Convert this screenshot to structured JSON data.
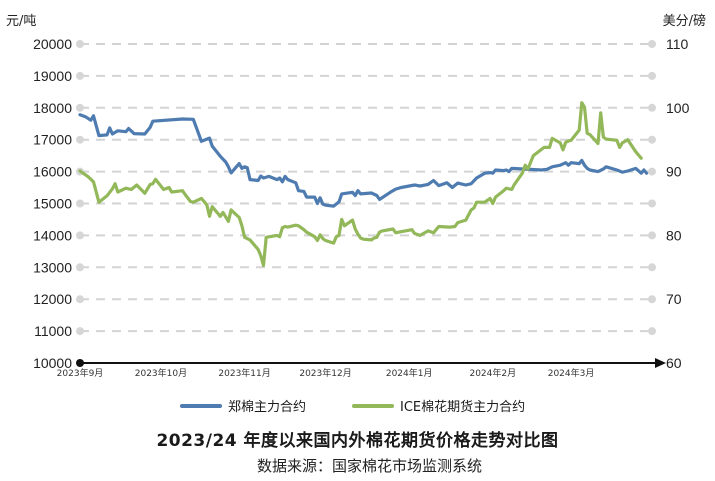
{
  "chart_data": {
    "type": "line",
    "title": "2023/24 年度以来国内外棉花期货价格走势对比图",
    "source": "数据来源：国家棉花市场监测系统",
    "left_unit": "元/吨",
    "right_unit": "美分/磅",
    "left_axis": {
      "min": 10000,
      "max": 20000,
      "ticks": [
        "10000",
        "11000",
        "12000",
        "13000",
        "14000",
        "15000",
        "16000",
        "17000",
        "18000",
        "19000",
        "20000"
      ]
    },
    "right_axis": {
      "min": 60,
      "max": 110,
      "ticks": [
        "60",
        "70",
        "80",
        "90",
        "100",
        "110"
      ]
    },
    "x_range": [
      "2023-09-01",
      "2024-03-31"
    ],
    "x_ticks": [
      {
        "date": "2023-09-01",
        "label": "2023年9月"
      },
      {
        "date": "2023-10-01",
        "label": "2023年10月"
      },
      {
        "date": "2023-11-01",
        "label": "2023年11月"
      },
      {
        "date": "2023-12-01",
        "label": "2023年12月"
      },
      {
        "date": "2024-01-01",
        "label": "2024年1月"
      },
      {
        "date": "2024-02-01",
        "label": "2024年2月"
      },
      {
        "date": "2024-03-01",
        "label": "2024年3月"
      }
    ],
    "grid": true,
    "legend_position": "bottom",
    "series": [
      {
        "name": "郑棉主力合约",
        "axis": "left",
        "color": "#4f7cb0",
        "points": [
          [
            "2023-09-01",
            17780
          ],
          [
            "2023-09-03",
            17720
          ],
          [
            "2023-09-05",
            17610
          ],
          [
            "2023-09-06",
            17750
          ],
          [
            "2023-09-08",
            17130
          ],
          [
            "2023-09-11",
            17150
          ],
          [
            "2023-09-12",
            17370
          ],
          [
            "2023-09-13",
            17180
          ],
          [
            "2023-09-15",
            17280
          ],
          [
            "2023-09-18",
            17250
          ],
          [
            "2023-09-19",
            17350
          ],
          [
            "2023-09-21",
            17190
          ],
          [
            "2023-09-25",
            17180
          ],
          [
            "2023-09-27",
            17390
          ],
          [
            "2023-09-28",
            17580
          ],
          [
            "2023-10-09",
            17650
          ],
          [
            "2023-10-13",
            17640
          ],
          [
            "2023-10-16",
            16950
          ],
          [
            "2023-10-19",
            17050
          ],
          [
            "2023-10-20",
            16800
          ],
          [
            "2023-10-23",
            16480
          ],
          [
            "2023-10-25",
            16300
          ],
          [
            "2023-10-26",
            16150
          ],
          [
            "2023-10-27",
            15960
          ],
          [
            "2023-10-30",
            16250
          ],
          [
            "2023-10-31",
            16100
          ],
          [
            "2023-11-01",
            16150
          ],
          [
            "2023-11-02",
            16120
          ],
          [
            "2023-11-03",
            15750
          ],
          [
            "2023-11-06",
            15720
          ],
          [
            "2023-11-07",
            15860
          ],
          [
            "2023-11-08",
            15800
          ],
          [
            "2023-11-10",
            15850
          ],
          [
            "2023-11-13",
            15750
          ],
          [
            "2023-11-14",
            15800
          ],
          [
            "2023-11-15",
            15680
          ],
          [
            "2023-11-16",
            15850
          ],
          [
            "2023-11-17",
            15750
          ],
          [
            "2023-11-20",
            15650
          ],
          [
            "2023-11-21",
            15400
          ],
          [
            "2023-11-23",
            15380
          ],
          [
            "2023-11-24",
            15200
          ],
          [
            "2023-11-27",
            15200
          ],
          [
            "2023-11-28",
            15000
          ],
          [
            "2023-11-29",
            15180
          ],
          [
            "2023-11-30",
            14980
          ],
          [
            "2023-12-01",
            14950
          ],
          [
            "2023-12-04",
            14920
          ],
          [
            "2023-12-06",
            15050
          ],
          [
            "2023-12-07",
            15300
          ],
          [
            "2023-12-11",
            15350
          ],
          [
            "2023-12-12",
            15250
          ],
          [
            "2023-12-13",
            15400
          ],
          [
            "2023-12-14",
            15300
          ],
          [
            "2023-12-18",
            15330
          ],
          [
            "2023-12-20",
            15250
          ],
          [
            "2023-12-21",
            15130
          ],
          [
            "2023-12-25",
            15350
          ],
          [
            "2023-12-27",
            15450
          ],
          [
            "2023-12-29",
            15500
          ],
          [
            "2024-01-03",
            15580
          ],
          [
            "2024-01-05",
            15550
          ],
          [
            "2024-01-08",
            15600
          ],
          [
            "2024-01-10",
            15720
          ],
          [
            "2024-01-12",
            15560
          ],
          [
            "2024-01-15",
            15650
          ],
          [
            "2024-01-17",
            15500
          ],
          [
            "2024-01-19",
            15640
          ],
          [
            "2024-01-22",
            15580
          ],
          [
            "2024-01-24",
            15620
          ],
          [
            "2024-01-26",
            15800
          ],
          [
            "2024-01-29",
            15950
          ],
          [
            "2024-01-31",
            15970
          ],
          [
            "2024-02-01",
            15950
          ],
          [
            "2024-02-02",
            16050
          ],
          [
            "2024-02-05",
            16030
          ],
          [
            "2024-02-06",
            16050
          ],
          [
            "2024-02-07",
            16000
          ],
          [
            "2024-02-08",
            16100
          ],
          [
            "2024-02-19",
            16050
          ],
          [
            "2024-02-21",
            16070
          ],
          [
            "2024-02-23",
            16150
          ],
          [
            "2024-02-26",
            16200
          ],
          [
            "2024-02-28",
            16280
          ],
          [
            "2024-02-29",
            16200
          ],
          [
            "2024-03-01",
            16280
          ],
          [
            "2024-03-04",
            16250
          ],
          [
            "2024-03-05",
            16350
          ],
          [
            "2024-03-06",
            16200
          ],
          [
            "2024-03-07",
            16100
          ],
          [
            "2024-03-08",
            16050
          ],
          [
            "2024-03-11",
            16000
          ],
          [
            "2024-03-13",
            16080
          ],
          [
            "2024-03-14",
            16150
          ],
          [
            "2024-03-18",
            16050
          ],
          [
            "2024-03-20",
            15980
          ],
          [
            "2024-03-22",
            16020
          ],
          [
            "2024-03-25",
            16100
          ],
          [
            "2024-03-27",
            15950
          ],
          [
            "2024-03-28",
            16050
          ],
          [
            "2024-03-29",
            15950
          ]
        ]
      },
      {
        "name": "ICE棉花期货主力合约",
        "axis": "right",
        "color": "#93b85a",
        "points": [
          [
            "2023-09-01",
            90.1
          ],
          [
            "2023-09-04",
            89.2
          ],
          [
            "2023-09-06",
            88.4
          ],
          [
            "2023-09-08",
            85.2
          ],
          [
            "2023-09-11",
            86.2
          ],
          [
            "2023-09-13",
            87.3
          ],
          [
            "2023-09-14",
            88.1
          ],
          [
            "2023-09-15",
            86.8
          ],
          [
            "2023-09-18",
            87.4
          ],
          [
            "2023-09-20",
            87.2
          ],
          [
            "2023-09-22",
            87.9
          ],
          [
            "2023-09-25",
            86.6
          ],
          [
            "2023-09-27",
            88.0
          ],
          [
            "2023-09-28",
            88.1
          ],
          [
            "2023-09-29",
            88.8
          ],
          [
            "2023-10-02",
            87.2
          ],
          [
            "2023-10-04",
            87.5
          ],
          [
            "2023-10-05",
            86.8
          ],
          [
            "2023-10-09",
            87.0
          ],
          [
            "2023-10-10",
            86.4
          ],
          [
            "2023-10-12",
            85.3
          ],
          [
            "2023-10-13",
            85.2
          ],
          [
            "2023-10-16",
            85.8
          ],
          [
            "2023-10-18",
            84.8
          ],
          [
            "2023-10-19",
            83.0
          ],
          [
            "2023-10-20",
            84.5
          ],
          [
            "2023-10-23",
            83.0
          ],
          [
            "2023-10-24",
            83.6
          ],
          [
            "2023-10-26",
            82.2
          ],
          [
            "2023-10-27",
            84.0
          ],
          [
            "2023-10-30",
            82.8
          ],
          [
            "2023-10-31",
            81.5
          ],
          [
            "2023-11-01",
            79.7
          ],
          [
            "2023-11-03",
            79.3
          ],
          [
            "2023-11-06",
            77.8
          ],
          [
            "2023-11-07",
            76.8
          ],
          [
            "2023-11-08",
            75.3
          ],
          [
            "2023-11-09",
            79.7
          ],
          [
            "2023-11-13",
            80.0
          ],
          [
            "2023-11-14",
            79.8
          ],
          [
            "2023-11-15",
            81.2
          ],
          [
            "2023-11-16",
            81.4
          ],
          [
            "2023-11-17",
            81.3
          ],
          [
            "2023-11-20",
            81.6
          ],
          [
            "2023-11-21",
            81.5
          ],
          [
            "2023-11-23",
            80.9
          ],
          [
            "2023-11-24",
            80.5
          ],
          [
            "2023-11-27",
            79.8
          ],
          [
            "2023-11-28",
            79.2
          ],
          [
            "2023-11-29",
            80.1
          ],
          [
            "2023-11-30",
            79.5
          ],
          [
            "2023-12-01",
            79.2
          ],
          [
            "2023-12-04",
            78.8
          ],
          [
            "2023-12-05",
            79.8
          ],
          [
            "2023-12-06",
            80.0
          ],
          [
            "2023-12-07",
            82.5
          ],
          [
            "2023-12-08",
            81.5
          ],
          [
            "2023-12-11",
            82.4
          ],
          [
            "2023-12-12",
            81.0
          ],
          [
            "2023-12-13",
            80.2
          ],
          [
            "2023-12-14",
            79.6
          ],
          [
            "2023-12-15",
            79.4
          ],
          [
            "2023-12-18",
            79.3
          ],
          [
            "2023-12-19",
            79.6
          ],
          [
            "2023-12-20",
            79.7
          ],
          [
            "2023-12-21",
            80.5
          ],
          [
            "2023-12-22",
            80.7
          ],
          [
            "2023-12-26",
            81.0
          ],
          [
            "2023-12-27",
            80.4
          ],
          [
            "2023-12-28",
            80.5
          ],
          [
            "2024-01-02",
            80.9
          ],
          [
            "2024-01-03",
            80.3
          ],
          [
            "2024-01-05",
            80.0
          ],
          [
            "2024-01-08",
            80.7
          ],
          [
            "2024-01-10",
            80.4
          ],
          [
            "2024-01-12",
            81.4
          ],
          [
            "2024-01-16",
            81.3
          ],
          [
            "2024-01-18",
            81.4
          ],
          [
            "2024-01-19",
            82.0
          ],
          [
            "2024-01-22",
            82.4
          ],
          [
            "2024-01-24",
            84.0
          ],
          [
            "2024-01-25",
            84.3
          ],
          [
            "2024-01-26",
            85.2
          ],
          [
            "2024-01-29",
            85.2
          ],
          [
            "2024-01-31",
            85.8
          ],
          [
            "2024-02-01",
            85.0
          ],
          [
            "2024-02-02",
            86.0
          ],
          [
            "2024-02-05",
            87.0
          ],
          [
            "2024-02-06",
            87.4
          ],
          [
            "2024-02-08",
            87.2
          ],
          [
            "2024-02-09",
            88.0
          ],
          [
            "2024-02-12",
            89.8
          ],
          [
            "2024-02-13",
            91.0
          ],
          [
            "2024-02-14",
            90.4
          ],
          [
            "2024-02-16",
            92.5
          ],
          [
            "2024-02-20",
            93.8
          ],
          [
            "2024-02-21",
            93.8
          ],
          [
            "2024-02-22",
            93.8
          ],
          [
            "2024-02-23",
            95.2
          ],
          [
            "2024-02-26",
            94.5
          ],
          [
            "2024-02-27",
            93.4
          ],
          [
            "2024-02-28",
            94.6
          ],
          [
            "2024-02-29",
            94.8
          ],
          [
            "2024-03-01",
            94.9
          ],
          [
            "2024-03-04",
            96.5
          ],
          [
            "2024-03-05",
            100.8
          ],
          [
            "2024-03-06",
            100.1
          ],
          [
            "2024-03-07",
            96.0
          ],
          [
            "2024-03-08",
            95.8
          ],
          [
            "2024-03-11",
            94.4
          ],
          [
            "2024-03-12",
            99.2
          ],
          [
            "2024-03-13",
            95.4
          ],
          [
            "2024-03-14",
            95.1
          ],
          [
            "2024-03-18",
            94.9
          ],
          [
            "2024-03-19",
            93.8
          ],
          [
            "2024-03-20",
            94.5
          ],
          [
            "2024-03-22",
            95.0
          ],
          [
            "2024-03-25",
            93.1
          ],
          [
            "2024-03-26",
            92.6
          ],
          [
            "2024-03-27",
            92.1
          ]
        ]
      }
    ]
  }
}
